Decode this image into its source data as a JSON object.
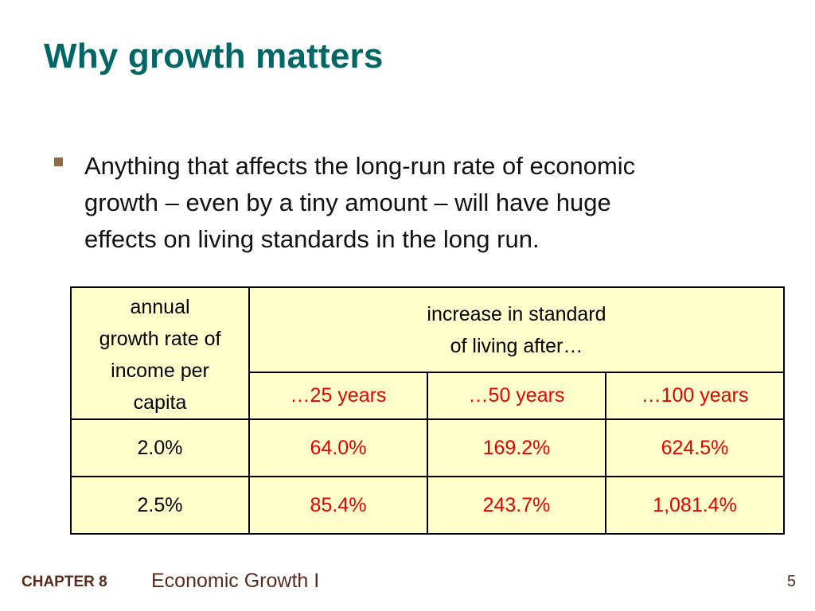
{
  "slide": {
    "title": "Why growth matters",
    "bullet": "Anything that affects the long-run rate of economic\ngrowth – even by a tiny amount – will have huge\neffects on living standards in the long run."
  },
  "table": {
    "corner_header": "annual\ngrowth rate of\nincome per\ncapita",
    "group_header": "increase in standard\nof living after…",
    "columns": [
      "…25 years",
      "…50 years",
      "…100 years"
    ],
    "rows": [
      {
        "rate": "2.0%",
        "values": [
          "64.0%",
          "169.2%",
          "624.5%"
        ]
      },
      {
        "rate": "2.5%",
        "values": [
          "85.4%",
          "243.7%",
          "1,081.4%"
        ]
      }
    ]
  },
  "footer": {
    "chapter": "CHAPTER 8",
    "chapter_title": "Economic Growth I",
    "page_number": "5"
  },
  "colors": {
    "title": "#006666",
    "table_background": "#ffffcc",
    "highlight_values": "#e60000",
    "footer_text": "#5a2a1a",
    "bullet_marker": "#8b6a4a"
  }
}
